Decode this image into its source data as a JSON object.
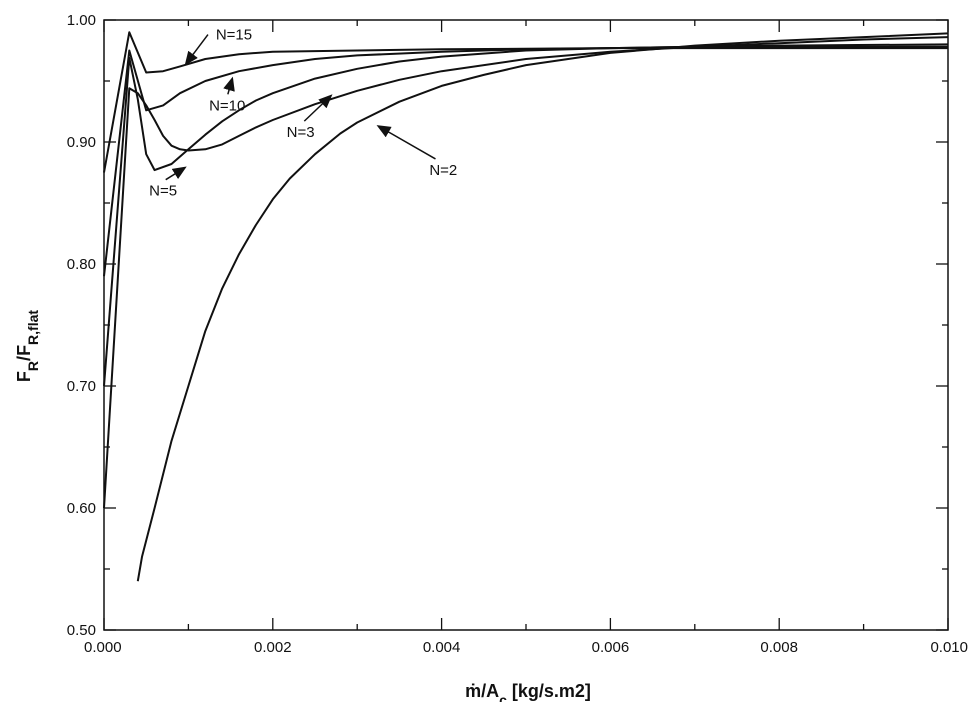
{
  "chart_data": {
    "type": "line",
    "title": "",
    "xlabel": "ṁ/A",
    "xlabel_sub": "c",
    "xlabel_units": " [kg/s.m2]",
    "ylabel": "F",
    "ylabel_sub1": "R",
    "ylabel_mid": "/F",
    "ylabel_sub2": "R,flat",
    "xlim": [
      0,
      0.01
    ],
    "ylim": [
      0.5,
      1.0
    ],
    "grid": false,
    "legend": "none",
    "x_ticks": [
      {
        "value": 0.0,
        "label": "0.000"
      },
      {
        "value": 0.002,
        "label": "0.002"
      },
      {
        "value": 0.004,
        "label": "0.004"
      },
      {
        "value": 0.006,
        "label": "0.006"
      },
      {
        "value": 0.008,
        "label": "0.008"
      },
      {
        "value": 0.01,
        "label": "0.010"
      }
    ],
    "y_ticks": [
      {
        "value": 0.5,
        "label": "0.50"
      },
      {
        "value": 0.6,
        "label": "0.60"
      },
      {
        "value": 0.7,
        "label": "0.70"
      },
      {
        "value": 0.8,
        "label": "0.80"
      },
      {
        "value": 0.9,
        "label": "0.90"
      },
      {
        "value": 1.0,
        "label": "1.00"
      }
    ],
    "series": [
      {
        "name": "N=15",
        "points": [
          [
            0.0,
            0.875
          ],
          [
            0.0003,
            0.99
          ],
          [
            0.0005,
            0.957
          ],
          [
            0.0007,
            0.958
          ],
          [
            0.0009,
            0.962
          ],
          [
            0.0012,
            0.968
          ],
          [
            0.0016,
            0.972
          ],
          [
            0.002,
            0.974
          ],
          [
            0.003,
            0.975
          ],
          [
            0.004,
            0.976
          ],
          [
            0.006,
            0.977
          ],
          [
            0.008,
            0.977
          ],
          [
            0.01,
            0.977
          ]
        ]
      },
      {
        "name": "N=10",
        "points": [
          [
            0.0,
            0.79
          ],
          [
            0.0003,
            0.975
          ],
          [
            0.0005,
            0.926
          ],
          [
            0.0007,
            0.93
          ],
          [
            0.0009,
            0.94
          ],
          [
            0.0012,
            0.95
          ],
          [
            0.0016,
            0.958
          ],
          [
            0.002,
            0.963
          ],
          [
            0.0025,
            0.968
          ],
          [
            0.003,
            0.971
          ],
          [
            0.004,
            0.974
          ],
          [
            0.005,
            0.976
          ],
          [
            0.006,
            0.977
          ],
          [
            0.007,
            0.978
          ],
          [
            0.008,
            0.978
          ],
          [
            0.01,
            0.978
          ]
        ]
      },
      {
        "name": "N=5",
        "points": [
          [
            0.0,
            0.7
          ],
          [
            0.0003,
            0.969
          ],
          [
            0.0004,
            0.935
          ],
          [
            0.0005,
            0.89
          ],
          [
            0.0006,
            0.877
          ],
          [
            0.0008,
            0.882
          ],
          [
            0.001,
            0.894
          ],
          [
            0.0012,
            0.906
          ],
          [
            0.0014,
            0.917
          ],
          [
            0.0016,
            0.926
          ],
          [
            0.0018,
            0.934
          ],
          [
            0.002,
            0.94
          ],
          [
            0.0025,
            0.952
          ],
          [
            0.003,
            0.96
          ],
          [
            0.0035,
            0.966
          ],
          [
            0.004,
            0.97
          ],
          [
            0.005,
            0.975
          ],
          [
            0.006,
            0.977
          ],
          [
            0.007,
            0.978
          ],
          [
            0.008,
            0.979
          ],
          [
            0.01,
            0.98
          ]
        ]
      },
      {
        "name": "N=3",
        "points": [
          [
            0.0,
            0.6
          ],
          [
            0.0003,
            0.944
          ],
          [
            0.0004,
            0.94
          ],
          [
            0.0005,
            0.93
          ],
          [
            0.0006,
            0.918
          ],
          [
            0.0007,
            0.905
          ],
          [
            0.0008,
            0.897
          ],
          [
            0.0009,
            0.894
          ],
          [
            0.001,
            0.893
          ],
          [
            0.0012,
            0.894
          ],
          [
            0.0014,
            0.898
          ],
          [
            0.0016,
            0.905
          ],
          [
            0.0018,
            0.912
          ],
          [
            0.002,
            0.918
          ],
          [
            0.0025,
            0.931
          ],
          [
            0.003,
            0.942
          ],
          [
            0.0035,
            0.951
          ],
          [
            0.004,
            0.958
          ],
          [
            0.005,
            0.968
          ],
          [
            0.006,
            0.974
          ],
          [
            0.007,
            0.978
          ],
          [
            0.008,
            0.981
          ],
          [
            0.009,
            0.984
          ],
          [
            0.01,
            0.986
          ]
        ]
      },
      {
        "name": "N=2",
        "points": [
          [
            0.0004,
            0.54
          ],
          [
            0.00045,
            0.56
          ],
          [
            0.0006,
            0.6
          ],
          [
            0.0008,
            0.655
          ],
          [
            0.001,
            0.7
          ],
          [
            0.0012,
            0.745
          ],
          [
            0.0014,
            0.78
          ],
          [
            0.0016,
            0.808
          ],
          [
            0.0018,
            0.832
          ],
          [
            0.002,
            0.853
          ],
          [
            0.0022,
            0.87
          ],
          [
            0.0025,
            0.89
          ],
          [
            0.0028,
            0.907
          ],
          [
            0.003,
            0.916
          ],
          [
            0.0035,
            0.933
          ],
          [
            0.004,
            0.946
          ],
          [
            0.0045,
            0.955
          ],
          [
            0.005,
            0.963
          ],
          [
            0.006,
            0.973
          ],
          [
            0.007,
            0.979
          ],
          [
            0.008,
            0.983
          ],
          [
            0.009,
            0.986
          ],
          [
            0.01,
            0.989
          ]
        ]
      }
    ],
    "annotations": [
      {
        "text": "N=15",
        "series": "N=15",
        "point": [
          0.00097,
          0.964
        ],
        "label_at": [
          0.00154,
          0.984
        ]
      },
      {
        "text": "N=10",
        "series": "N=10",
        "point": [
          0.00152,
          0.952
        ],
        "label_at": [
          0.00146,
          0.926
        ]
      },
      {
        "text": "N=5",
        "series": "N=5",
        "point": [
          0.00096,
          0.879
        ],
        "label_at": [
          0.0007,
          0.856
        ]
      },
      {
        "text": "N=3",
        "series": "N=3",
        "point": [
          0.00269,
          0.938
        ],
        "label_at": [
          0.00233,
          0.904
        ]
      },
      {
        "text": "N=2",
        "series": "N=2",
        "point": [
          0.00325,
          0.913
        ],
        "label_at": [
          0.00402,
          0.873
        ]
      }
    ]
  }
}
